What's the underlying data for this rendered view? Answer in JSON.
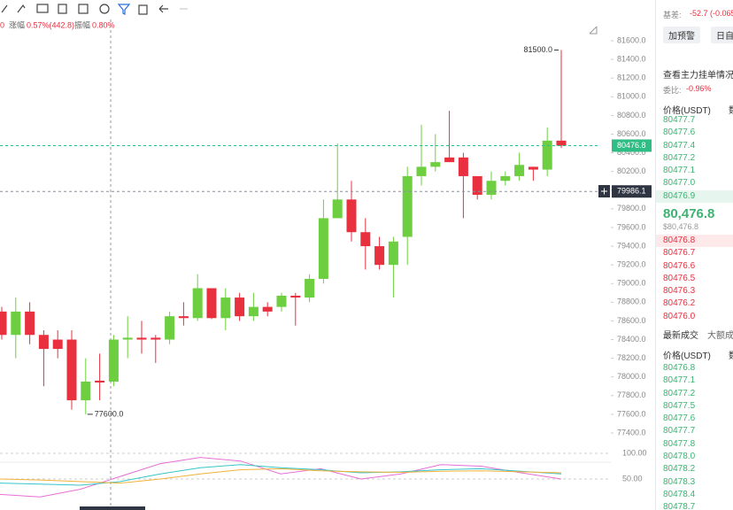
{
  "top_stats": [
    "0",
    "涨幅",
    "0.57%(442.8)",
    "振幅",
    "0.80%"
  ],
  "chart_data": [
    {
      "type": "candlestick",
      "up_color": "#6dcf3f",
      "down_color": "#e8303f",
      "open": [
        78700,
        78450,
        78700,
        78450,
        78400,
        78400,
        77750,
        77960,
        77950,
        78400,
        78420,
        78420,
        78400,
        78650,
        78630,
        78950,
        78630,
        78850,
        78650,
        78750,
        78750,
        78870,
        78850,
        79050,
        79700,
        79900,
        79550,
        79400,
        79200,
        79500,
        80150,
        80250,
        80350,
        80350,
        80150,
        79950,
        80100,
        80150,
        80250,
        80220,
        80530
      ],
      "high": [
        78750,
        78850,
        78800,
        78500,
        78500,
        78500,
        78200,
        78250,
        78450,
        78650,
        78600,
        78450,
        78700,
        78800,
        79100,
        78950,
        78950,
        78900,
        78900,
        78800,
        78900,
        78900,
        79100,
        79900,
        80500,
        80100,
        79700,
        79500,
        79500,
        80250,
        80700,
        80600,
        80850,
        80400,
        80150,
        80200,
        80200,
        80400,
        80250,
        80670,
        81500
      ],
      "low": [
        78400,
        78200,
        78350,
        77900,
        78200,
        77650,
        77600,
        77750,
        77900,
        78200,
        78250,
        78150,
        78350,
        78550,
        78600,
        78620,
        78500,
        78600,
        78600,
        78650,
        78700,
        78550,
        78800,
        79000,
        79700,
        79450,
        79150,
        79150,
        78850,
        79200,
        80050,
        80200,
        80300,
        79700,
        79900,
        79900,
        80050,
        80100,
        80100,
        80150,
        80450
      ],
      "close": [
        78450,
        78700,
        78450,
        78300,
        78300,
        77750,
        77950,
        77940,
        78400,
        78420,
        78400,
        78400,
        78650,
        78630,
        78950,
        78630,
        78850,
        78650,
        78750,
        78700,
        78870,
        78850,
        79050,
        79700,
        79900,
        79550,
        79400,
        79200,
        79450,
        80150,
        80250,
        80300,
        80300,
        80150,
        79950,
        80100,
        80150,
        80270,
        80220,
        80530,
        80476.8
      ],
      "ylim": [
        77400,
        81600
      ],
      "yticks": [
        {
          "value": 81600,
          "label": "81600.0"
        },
        {
          "value": 81400,
          "label": "81400.0"
        },
        {
          "value": 81200,
          "label": "81200.0"
        },
        {
          "value": 81000,
          "label": "81000.0"
        },
        {
          "value": 80800,
          "label": "80800.0"
        },
        {
          "value": 80600,
          "label": "80600.0"
        },
        {
          "value": 80400,
          "label": "80400.0"
        },
        {
          "value": 80200,
          "label": "80200.0"
        },
        {
          "value": 80000,
          "label": "80000.0"
        },
        {
          "value": 79800,
          "label": "79800.0"
        },
        {
          "value": 79600,
          "label": "79600.0"
        },
        {
          "value": 79400,
          "label": "79400.0"
        },
        {
          "value": 79200,
          "label": "79200.0"
        },
        {
          "value": 79000,
          "label": "79000.0"
        },
        {
          "value": 78800,
          "label": "78800.0"
        },
        {
          "value": 78600,
          "label": "78600.0"
        },
        {
          "value": 78400,
          "label": "78400.0"
        },
        {
          "value": 78200,
          "label": "78200.0"
        },
        {
          "value": 78000,
          "label": "78000.0"
        },
        {
          "value": 77800,
          "label": "77800.0"
        },
        {
          "value": 77600,
          "label": "77600.0"
        },
        {
          "value": 77400,
          "label": "77400.0"
        }
      ],
      "markers": [
        {
          "value": 81500,
          "label": "81500.0"
        },
        {
          "value": 77600,
          "label": "77600.0"
        }
      ],
      "price_lines": [
        {
          "value": 80476.8,
          "label": "80476.8",
          "color": "#2ebd85"
        },
        {
          "value": 79986.1,
          "label": "79986.1",
          "color": "#8a8f99"
        }
      ]
    },
    {
      "type": "line",
      "ylim": [
        17,
        100
      ],
      "yticks": [
        {
          "value": 100,
          "label": "100.00"
        },
        {
          "value": 50,
          "label": "50.00"
        }
      ],
      "series": [
        {
          "color": "#e66fd6",
          "values": [
            20,
            15,
            30,
            55,
            80,
            92,
            85,
            60,
            70,
            50,
            60,
            78,
            75,
            62,
            50
          ]
        },
        {
          "color": "#36c5c8",
          "values": [
            42,
            40,
            38,
            45,
            60,
            72,
            78,
            72,
            68,
            62,
            64,
            68,
            70,
            65,
            60
          ]
        },
        {
          "color": "#f2b23a",
          "values": [
            50,
            48,
            45,
            42,
            50,
            60,
            68,
            70,
            66,
            64,
            63,
            65,
            66,
            64,
            62
          ]
        }
      ]
    }
  ],
  "panel": {
    "basis_label": "基差:",
    "basis_value": "-52.7 (-0.065",
    "buttons": [
      "加预警",
      "日自"
    ],
    "depth_link": "查看主力挂单情况",
    "ratio_label": "委比:",
    "ratio_value": "-0.96%",
    "book_header": "价格(USDT)",
    "book_header2": "数",
    "asks": [
      "80477.7",
      "80477.6",
      "80477.4",
      "80477.2",
      "80477.1",
      "80477.0",
      "80476.9"
    ],
    "last_price": "80,476.8",
    "last_usd": "$80,476.8",
    "bids": [
      "80476.8",
      "80476.7",
      "80476.6",
      "80476.5",
      "80476.3",
      "80476.2",
      "80476.0"
    ],
    "tabs": [
      "最新成交",
      "大额成"
    ],
    "trades_header": "价格(USDT)",
    "trades_header2": "数",
    "trades": [
      "80476.8",
      "80477.1",
      "80477.2",
      "80477.5",
      "80477.6",
      "80477.7",
      "80477.8",
      "80478.0",
      "80478.2",
      "80478.3",
      "80478.4",
      "80478.7"
    ]
  }
}
